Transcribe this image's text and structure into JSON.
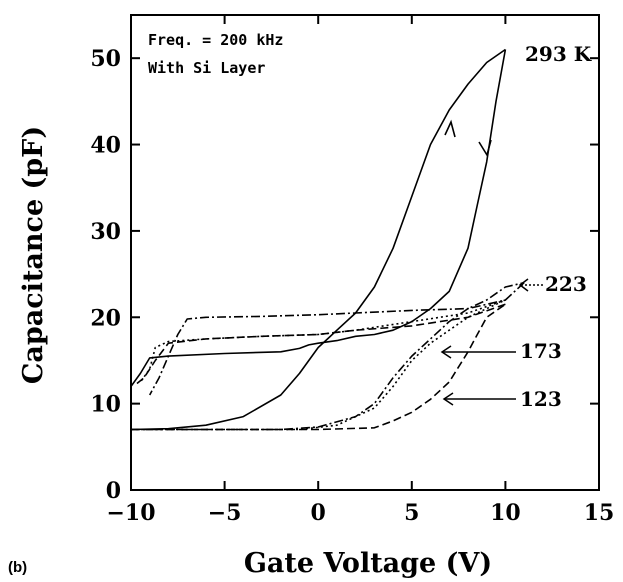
{
  "panel_label": "(b)",
  "chart_data": {
    "type": "line",
    "xlabel": "Gate Voltage (V)",
    "ylabel": "Capacitance (pF)",
    "xlim": [
      -10,
      15
    ],
    "ylim": [
      0,
      55
    ],
    "xticks": [
      -10,
      -5,
      0,
      5,
      10,
      15
    ],
    "yticks": [
      0,
      10,
      20,
      30,
      40,
      50
    ],
    "xtick_labels": [
      "−10",
      "−5",
      "0",
      "5",
      "10",
      "15"
    ],
    "ytick_labels": [
      "0",
      "10",
      "20",
      "30",
      "40",
      "50"
    ],
    "grid": false,
    "annotations": [
      "Freq. = 200 kHz",
      "With Si Layer"
    ],
    "series": [
      {
        "name": "293 K",
        "style": "solid",
        "up": [
          [
            -10,
            7
          ],
          [
            -8,
            7.1
          ],
          [
            -6,
            7.5
          ],
          [
            -4,
            8.5
          ],
          [
            -2,
            11
          ],
          [
            -1,
            13.5
          ],
          [
            0,
            16.5
          ],
          [
            0.5,
            17.5
          ],
          [
            1,
            18.5
          ],
          [
            2,
            20.5
          ],
          [
            3,
            23.5
          ],
          [
            4,
            28
          ],
          [
            5,
            34
          ],
          [
            6,
            40
          ],
          [
            7,
            44
          ],
          [
            8,
            47
          ],
          [
            9,
            49.5
          ],
          [
            10,
            51
          ]
        ],
        "down": [
          [
            10,
            51
          ],
          [
            9.5,
            45
          ],
          [
            9,
            38
          ],
          [
            8.5,
            33
          ],
          [
            8,
            28
          ],
          [
            7,
            23
          ],
          [
            6,
            21
          ],
          [
            5,
            19.5
          ],
          [
            4,
            18.5
          ],
          [
            3,
            18
          ],
          [
            2,
            17.8
          ],
          [
            1,
            17.3
          ],
          [
            0,
            17
          ],
          [
            -0.5,
            16.8
          ],
          [
            -1,
            16.4
          ],
          [
            -2,
            16
          ],
          [
            -5,
            15.8
          ],
          [
            -8,
            15.5
          ],
          [
            -9,
            15.3
          ],
          [
            -9.5,
            13.5
          ],
          [
            -10,
            12
          ]
        ]
      },
      {
        "name": "223",
        "style": "dashdot",
        "up": [
          [
            -10,
            7
          ],
          [
            -6,
            7
          ],
          [
            -2,
            7
          ],
          [
            0,
            7.3
          ],
          [
            2,
            8.5
          ],
          [
            3,
            10
          ],
          [
            4,
            13
          ],
          [
            5,
            15.5
          ],
          [
            6,
            17.5
          ],
          [
            7,
            19.5
          ],
          [
            8,
            21
          ],
          [
            9,
            22
          ],
          [
            10,
            23.5
          ],
          [
            11,
            24
          ]
        ],
        "down": [
          [
            11,
            24
          ],
          [
            10,
            22
          ],
          [
            8,
            21
          ],
          [
            5,
            20.8
          ],
          [
            2,
            20.5
          ],
          [
            0,
            20.3
          ],
          [
            -3,
            20.1
          ],
          [
            -6,
            20
          ],
          [
            -7,
            19.8
          ],
          [
            -7.5,
            18
          ],
          [
            -8,
            15.5
          ],
          [
            -8.5,
            13
          ],
          [
            -9,
            11
          ]
        ]
      },
      {
        "name": "173",
        "style": "dotted",
        "up": [
          [
            -10,
            7
          ],
          [
            -5,
            7
          ],
          [
            -1,
            7
          ],
          [
            1,
            7.5
          ],
          [
            3,
            9.5
          ],
          [
            4,
            12
          ],
          [
            5,
            15
          ],
          [
            6,
            17
          ],
          [
            7,
            18.5
          ],
          [
            8,
            20
          ],
          [
            9,
            21
          ],
          [
            10,
            22
          ]
        ],
        "down": [
          [
            10,
            22
          ],
          [
            8,
            20.5
          ],
          [
            5,
            19.5
          ],
          [
            2,
            18.5
          ],
          [
            0,
            18
          ],
          [
            -3,
            17.8
          ],
          [
            -6,
            17.5
          ],
          [
            -8,
            17.2
          ],
          [
            -8.7,
            16.5
          ],
          [
            -9,
            14
          ],
          [
            -9.5,
            12.5
          ]
        ]
      },
      {
        "name": "123",
        "style": "dashed",
        "up": [
          [
            -10,
            7
          ],
          [
            -5,
            7
          ],
          [
            0,
            7
          ],
          [
            3,
            7.2
          ],
          [
            4,
            8
          ],
          [
            5,
            9
          ],
          [
            6,
            10.5
          ],
          [
            7,
            12.5
          ],
          [
            8,
            16
          ],
          [
            8.5,
            18
          ],
          [
            9,
            20
          ],
          [
            10,
            21.5
          ]
        ],
        "down": [
          [
            10,
            21.5
          ],
          [
            8,
            20
          ],
          [
            5,
            19
          ],
          [
            2,
            18.5
          ],
          [
            0,
            18
          ],
          [
            -3,
            17.8
          ],
          [
            -6,
            17.5
          ],
          [
            -8,
            17
          ],
          [
            -8.7,
            15
          ],
          [
            -9.3,
            13
          ],
          [
            -9.7,
            12.3
          ]
        ]
      }
    ],
    "series_labels": [
      "293 K",
      "223",
      "173",
      "123"
    ]
  }
}
